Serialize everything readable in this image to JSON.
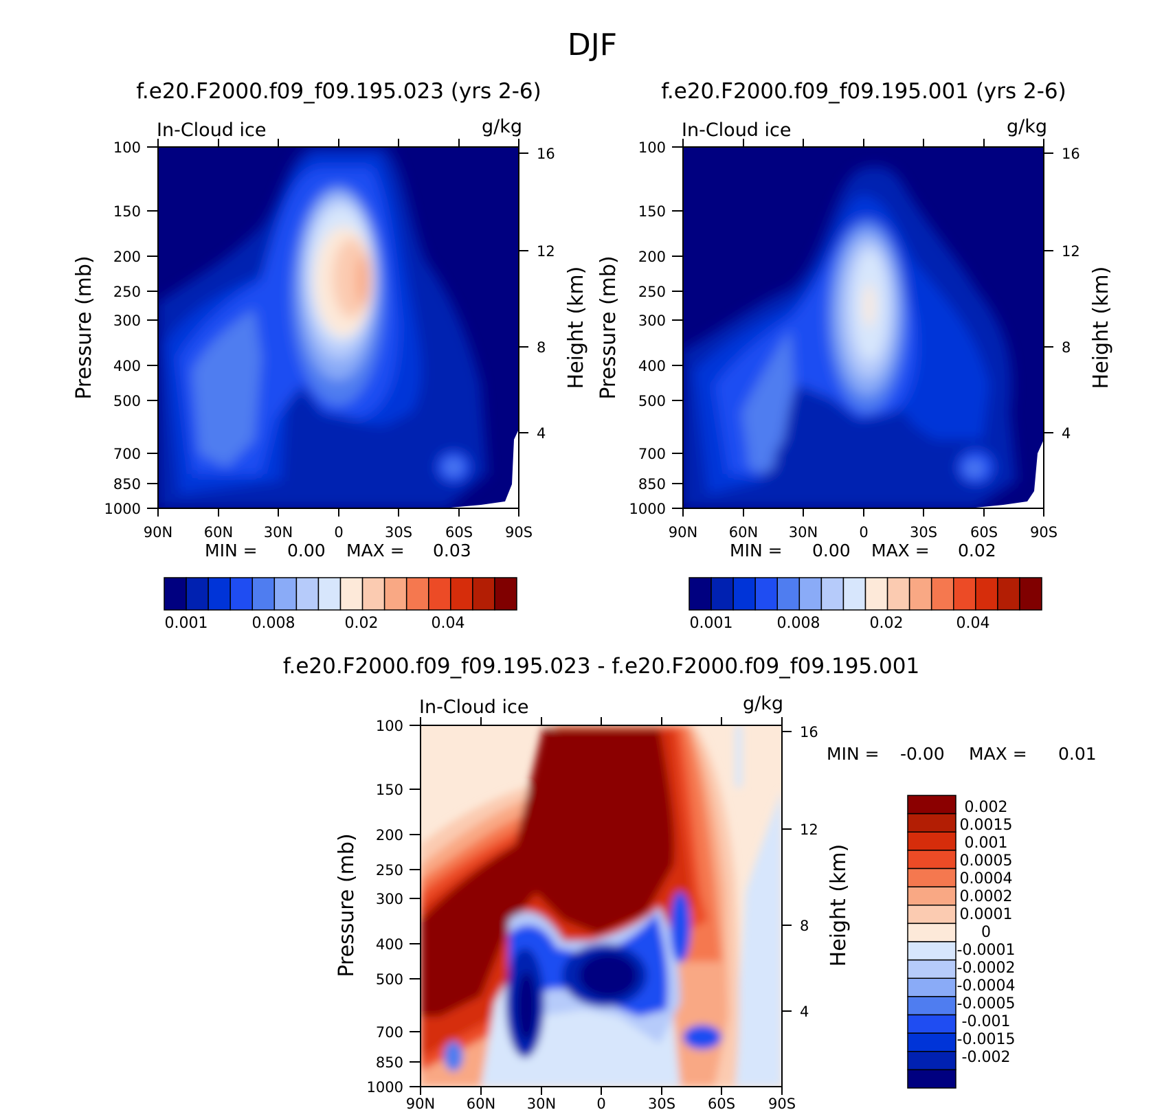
{
  "figure": {
    "title": "DJF"
  },
  "colors": {
    "abs": [
      "#000080",
      "#0021b1",
      "#0034d8",
      "#1f4df2",
      "#4f7df0",
      "#8aabf7",
      "#b6cbfa",
      "#d7e6fc",
      "#fde9d9",
      "#fbcbb1",
      "#f9a884",
      "#f5784f",
      "#ec4b26",
      "#d62d0b",
      "#b31e04",
      "#800000"
    ],
    "diff": [
      "#000080",
      "#0021b1",
      "#0034d8",
      "#1f4df2",
      "#4f7df0",
      "#8aabf7",
      "#b6cbfa",
      "#d7e6fc",
      "#fde9d9",
      "#fbcbb1",
      "#f9a884",
      "#f5784f",
      "#ec4b26",
      "#d62d0b",
      "#b31e04",
      "#8b0000"
    ]
  },
  "chart_data": [
    {
      "type": "heatmap",
      "title": "f.e20.F2000.f09_f09.195.023 (yrs 2-6)",
      "left_label": "In-Cloud ice",
      "units": "g/kg",
      "ylabel": "Pressure (mb)",
      "ylabel_right": "Height (km)",
      "x_ticks": [
        "90N",
        "60N",
        "30N",
        "0",
        "30S",
        "60S",
        "90S"
      ],
      "y_ticks": [
        "100",
        "150",
        "200",
        "250",
        "300",
        "400",
        "500",
        "700",
        "850",
        "1000"
      ],
      "y_ticks_right": [
        "16",
        "12",
        "8",
        "4"
      ],
      "min_label": "MIN =",
      "min_value": "0.00",
      "max_label": "MAX =",
      "max_value": "0.03",
      "colorbar_labels": [
        "0.001",
        "0.008",
        "0.02",
        "0.04"
      ]
    },
    {
      "type": "heatmap",
      "title": "f.e20.F2000.f09_f09.195.001 (yrs 2-6)",
      "left_label": "In-Cloud ice",
      "units": "g/kg",
      "ylabel": "Pressure (mb)",
      "ylabel_right": "Height (km)",
      "x_ticks": [
        "90N",
        "60N",
        "30N",
        "0",
        "30S",
        "60S",
        "90S"
      ],
      "y_ticks": [
        "100",
        "150",
        "200",
        "250",
        "300",
        "400",
        "500",
        "700",
        "850",
        "1000"
      ],
      "y_ticks_right": [
        "16",
        "12",
        "8",
        "4"
      ],
      "min_label": "MIN =",
      "min_value": "0.00",
      "max_label": "MAX =",
      "max_value": "0.02",
      "colorbar_labels": [
        "0.001",
        "0.008",
        "0.02",
        "0.04"
      ]
    },
    {
      "type": "heatmap",
      "title": "f.e20.F2000.f09_f09.195.023 - f.e20.F2000.f09_f09.195.001",
      "left_label": "In-Cloud ice",
      "units": "g/kg",
      "ylabel": "Pressure (mb)",
      "ylabel_right": "Height (km)",
      "x_ticks": [
        "90N",
        "60N",
        "30N",
        "0",
        "30S",
        "60S",
        "90S"
      ],
      "y_ticks": [
        "100",
        "150",
        "200",
        "250",
        "300",
        "400",
        "500",
        "700",
        "850",
        "1000"
      ],
      "y_ticks_right": [
        "16",
        "12",
        "8",
        "4"
      ],
      "min_label": "MIN =",
      "min_value": "-0.00",
      "max_label": "MAX =",
      "max_value": "0.01",
      "colorbar_labels": [
        "0.002",
        "0.0015",
        "0.001",
        "0.0005",
        "0.0004",
        "0.0002",
        "0.0001",
        "0",
        "-0.0001",
        "-0.0002",
        "-0.0004",
        "-0.0005",
        "-0.001",
        "-0.0015",
        "-0.002"
      ]
    }
  ]
}
